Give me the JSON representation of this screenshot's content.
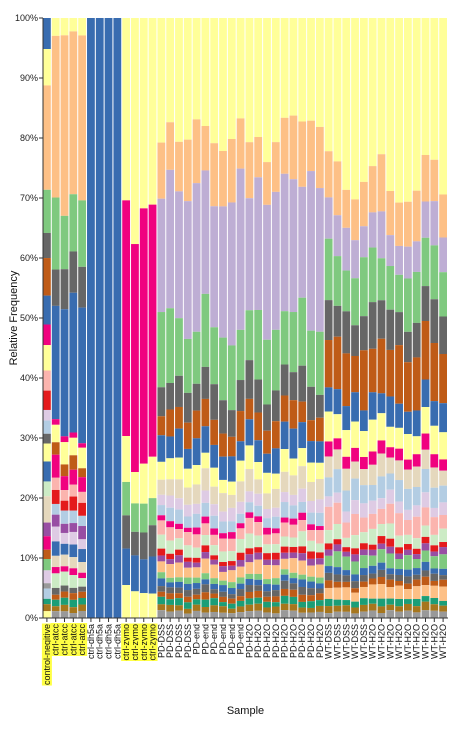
{
  "chart_data": {
    "type": "bar",
    "stacked": true,
    "xlabel": "Sample",
    "ylabel": "Relative Frequency",
    "ylim": [
      0,
      100
    ],
    "yticks": [
      "0%",
      "10%",
      "20%",
      "30%",
      "40%",
      "50%",
      "60%",
      "70%",
      "80%",
      "90%",
      "100%"
    ],
    "highlight_color": "#ffff44",
    "categories": [
      {
        "label": "control-negitive",
        "highlight": true,
        "profile": "ctrl_neg"
      },
      {
        "label": "ctrl-atcc",
        "highlight": true,
        "profile": "atcc"
      },
      {
        "label": "ctrl-atcc",
        "highlight": true,
        "profile": "atcc"
      },
      {
        "label": "ctrl-atcc",
        "highlight": true,
        "profile": "atcc"
      },
      {
        "label": "ctrl-atcc",
        "highlight": true,
        "profile": "atcc"
      },
      {
        "label": "ctrl-dh5a",
        "highlight": false,
        "profile": "dh5a"
      },
      {
        "label": "ctrl-dh5a",
        "highlight": false,
        "profile": "dh5a"
      },
      {
        "label": "ctrl-dh5a",
        "highlight": false,
        "profile": "dh5a"
      },
      {
        "label": "ctrl-dh5a",
        "highlight": false,
        "profile": "dh5a"
      },
      {
        "label": "ctrl-zymo",
        "highlight": true,
        "profile": "zymo"
      },
      {
        "label": "ctrl-zymo",
        "highlight": true,
        "profile": "zymo"
      },
      {
        "label": "ctrl-zymo",
        "highlight": true,
        "profile": "zymo"
      },
      {
        "label": "ctrl-zymo",
        "highlight": true,
        "profile": "zymo"
      },
      {
        "label": "PD-DSS",
        "highlight": false,
        "profile": "pd"
      },
      {
        "label": "PD-DSS",
        "highlight": false,
        "profile": "pd"
      },
      {
        "label": "PD-DSS",
        "highlight": false,
        "profile": "pd"
      },
      {
        "label": "PD-DSS",
        "highlight": false,
        "profile": "pd"
      },
      {
        "label": "PD-end",
        "highlight": false,
        "profile": "pd"
      },
      {
        "label": "PD-end",
        "highlight": false,
        "profile": "pd"
      },
      {
        "label": "PD-end",
        "highlight": false,
        "profile": "pd"
      },
      {
        "label": "PD-end",
        "highlight": false,
        "profile": "pd"
      },
      {
        "label": "PD-end",
        "highlight": false,
        "profile": "pd"
      },
      {
        "label": "PD-end",
        "highlight": false,
        "profile": "pd"
      },
      {
        "label": "PD-H2O",
        "highlight": false,
        "profile": "pd"
      },
      {
        "label": "PD-H2O",
        "highlight": false,
        "profile": "pd"
      },
      {
        "label": "PD-H2O",
        "highlight": false,
        "profile": "pd"
      },
      {
        "label": "PD-H2O",
        "highlight": false,
        "profile": "pd"
      },
      {
        "label": "PD-H2O",
        "highlight": false,
        "profile": "pd"
      },
      {
        "label": "PD-H2O",
        "highlight": false,
        "profile": "pd"
      },
      {
        "label": "PD-H2O",
        "highlight": false,
        "profile": "pd"
      },
      {
        "label": "PD-H2O",
        "highlight": false,
        "profile": "pd"
      },
      {
        "label": "PD-H2O",
        "highlight": false,
        "profile": "pd"
      },
      {
        "label": "WT-DSS",
        "highlight": false,
        "profile": "wt"
      },
      {
        "label": "WT-DSS",
        "highlight": false,
        "profile": "wt"
      },
      {
        "label": "WT-DSS",
        "highlight": false,
        "profile": "wt"
      },
      {
        "label": "WT-DSS",
        "highlight": false,
        "profile": "wt"
      },
      {
        "label": "WT-DSS",
        "highlight": false,
        "profile": "wt"
      },
      {
        "label": "WT-H2O",
        "highlight": false,
        "profile": "wt"
      },
      {
        "label": "WT-H2O",
        "highlight": false,
        "profile": "wt"
      },
      {
        "label": "WT-H2O",
        "highlight": false,
        "profile": "wt"
      },
      {
        "label": "WT-H2O",
        "highlight": false,
        "profile": "wt"
      },
      {
        "label": "WT-H2O",
        "highlight": false,
        "profile": "wt"
      },
      {
        "label": "WT-H2O",
        "highlight": false,
        "profile": "wt"
      },
      {
        "label": "WT-H2O",
        "highlight": false,
        "profile": "wt"
      },
      {
        "label": "WT-H2O",
        "highlight": false,
        "profile": "wt"
      },
      {
        "label": "WT-H2O",
        "highlight": false,
        "profile": "wt"
      }
    ],
    "palette": {
      "yellow": "#ffff99",
      "peach": "#fdc086",
      "lavender": "#beaed4",
      "green": "#7fc97f",
      "darkgray": "#666666",
      "orange": "#bf5b17",
      "blue": "#386cb0",
      "magenta": "#f0027f",
      "pink": "#fbb4ae",
      "lightblue": "#b3cde3",
      "lightgreen": "#ccebc5",
      "mauve": "#decbe4",
      "tan": "#e5d8bd",
      "red": "#e41a1c",
      "purple": "#984ea3",
      "brown": "#a6761d",
      "teal": "#1b9e77",
      "gray": "#999999"
    },
    "profiles": {
      "ctrl_neg": [
        [
          "blue",
          5
        ],
        [
          "yellow",
          7
        ],
        [
          "peach",
          17
        ],
        [
          "green",
          6
        ],
        [
          "darkgray",
          4
        ],
        [
          "orange",
          6
        ],
        [
          "blue",
          6
        ],
        [
          "magenta",
          3
        ],
        [
          "yellow",
          4
        ],
        [
          "pink",
          3
        ],
        [
          "red",
          3
        ],
        [
          "mauve",
          2
        ],
        [
          "lightblue",
          2
        ],
        [
          "darkgray",
          2
        ],
        [
          "yellow",
          3
        ],
        [
          "blue",
          4
        ],
        [
          "lightgreen",
          3
        ],
        [
          "tan",
          4
        ],
        [
          "purple",
          2
        ],
        [
          "magenta",
          2
        ],
        [
          "orange",
          2
        ],
        [
          "green",
          2
        ],
        [
          "mauve",
          2
        ],
        [
          "gray",
          1
        ],
        [
          "lightblue",
          2
        ],
        [
          "teal",
          1
        ],
        [
          "brown",
          1
        ],
        [
          "yellow",
          1
        ]
      ],
      "atcc": [
        [
          "yellow",
          3
        ],
        [
          "peach",
          27
        ],
        [
          "green",
          10
        ],
        [
          "darkgray",
          7
        ],
        [
          "blue",
          22
        ],
        [
          "magenta",
          1
        ],
        [
          "yellow",
          3
        ],
        [
          "orange",
          2
        ],
        [
          "magenta",
          3
        ],
        [
          "pink",
          2
        ],
        [
          "red",
          2
        ],
        [
          "lightblue",
          2
        ],
        [
          "purple",
          2
        ],
        [
          "mauve",
          2
        ],
        [
          "blue",
          2
        ],
        [
          "tan",
          2
        ],
        [
          "magenta",
          1
        ],
        [
          "lightgreen",
          2
        ],
        [
          "darkgray",
          1
        ],
        [
          "orange",
          1
        ],
        [
          "teal",
          1
        ],
        [
          "brown",
          1
        ],
        [
          "gray",
          1
        ]
      ],
      "dh5a": [
        [
          "blue",
          100
        ]
      ],
      "zymo": [
        [
          "yellow",
          34
        ],
        [
          "magenta",
          38
        ],
        [
          "yellow",
          7
        ],
        [
          "green",
          5
        ],
        [
          "darkgray",
          5
        ],
        [
          "blue",
          6
        ],
        [
          "yellow",
          5
        ]
      ],
      "pd": [
        [
          "yellow",
          20
        ],
        [
          "peach",
          9
        ],
        [
          "lavender",
          22
        ],
        [
          "green",
          10
        ],
        [
          "darkgray",
          5
        ],
        [
          "orange",
          4
        ],
        [
          "blue",
          4
        ],
        [
          "yellow",
          3
        ],
        [
          "tan",
          3
        ],
        [
          "mauve",
          2
        ],
        [
          "lightblue",
          2
        ],
        [
          "magenta",
          1
        ],
        [
          "pink",
          2
        ],
        [
          "lightgreen",
          2
        ],
        [
          "red",
          1
        ],
        [
          "purple",
          1
        ],
        [
          "peach",
          2
        ],
        [
          "green",
          1
        ],
        [
          "blue",
          1
        ],
        [
          "darkgray",
          1
        ],
        [
          "orange",
          1
        ],
        [
          "teal",
          1
        ],
        [
          "brown",
          1
        ],
        [
          "gray",
          1
        ]
      ],
      "wt": [
        [
          "yellow",
          25
        ],
        [
          "peach",
          8
        ],
        [
          "lavender",
          6
        ],
        [
          "green",
          8
        ],
        [
          "darkgray",
          6
        ],
        [
          "orange",
          8
        ],
        [
          "blue",
          4
        ],
        [
          "yellow",
          4
        ],
        [
          "magenta",
          2
        ],
        [
          "tan",
          3
        ],
        [
          "lightblue",
          3
        ],
        [
          "mauve",
          2
        ],
        [
          "pink",
          3
        ],
        [
          "lightgreen",
          2
        ],
        [
          "red",
          1
        ],
        [
          "purple",
          1
        ],
        [
          "green",
          2
        ],
        [
          "blue",
          1
        ],
        [
          "darkgray",
          1
        ],
        [
          "orange",
          1
        ],
        [
          "peach",
          2
        ],
        [
          "teal",
          1
        ],
        [
          "brown",
          1
        ],
        [
          "gray",
          1
        ]
      ]
    }
  }
}
